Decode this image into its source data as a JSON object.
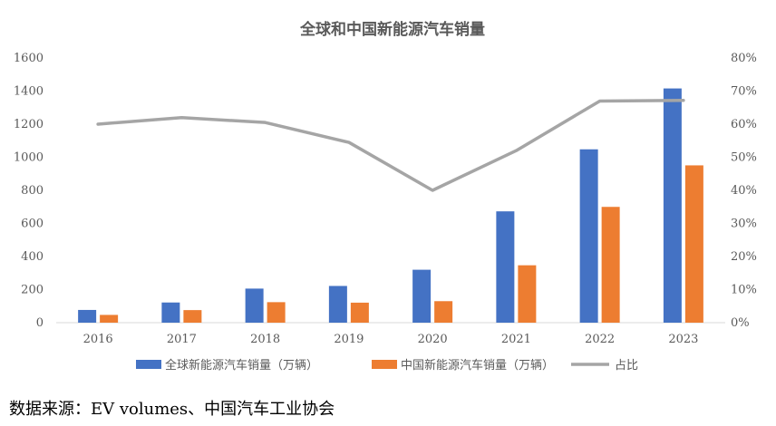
{
  "source_note": "数据来源：EV volumes、中国汽车工业协会",
  "colors": {
    "global_bar": "#4472C4",
    "china_bar": "#ED7D31",
    "share_line": "#A5A5A5",
    "axis": "#D9D9D9",
    "text": "#595959"
  },
  "chart_data": {
    "type": "bar",
    "title": "全球和中国新能源汽车销量",
    "categories": [
      "2016",
      "2017",
      "2018",
      "2019",
      "2020",
      "2021",
      "2022",
      "2023"
    ],
    "series": [
      {
        "name": "全球新能源汽车销量（万辆）",
        "kind": "bar",
        "axis": "left",
        "values": [
          77,
          122,
          206,
          222,
          320,
          673,
          1048,
          1416
        ]
      },
      {
        "name": "中国新能源汽车销量（万辆）",
        "kind": "bar",
        "axis": "right-none",
        "values": [
          47,
          76,
          124,
          121,
          130,
          347,
          700,
          951
        ]
      },
      {
        "name": "占比",
        "kind": "line",
        "axis": "right",
        "values": [
          0.6,
          0.62,
          0.605,
          0.545,
          0.4,
          0.52,
          0.67,
          0.672
        ]
      }
    ],
    "ylim_left": [
      0,
      1600
    ],
    "yticks_left": [
      "0",
      "200",
      "400",
      "600",
      "800",
      "1000",
      "1200",
      "1400",
      "1600"
    ],
    "ylim_right": [
      0,
      0.8
    ],
    "yticks_right": [
      "0%",
      "10%",
      "20%",
      "30%",
      "40%",
      "50%",
      "60%",
      "70%",
      "80%"
    ],
    "grid": false,
    "legend_position": "bottom"
  }
}
